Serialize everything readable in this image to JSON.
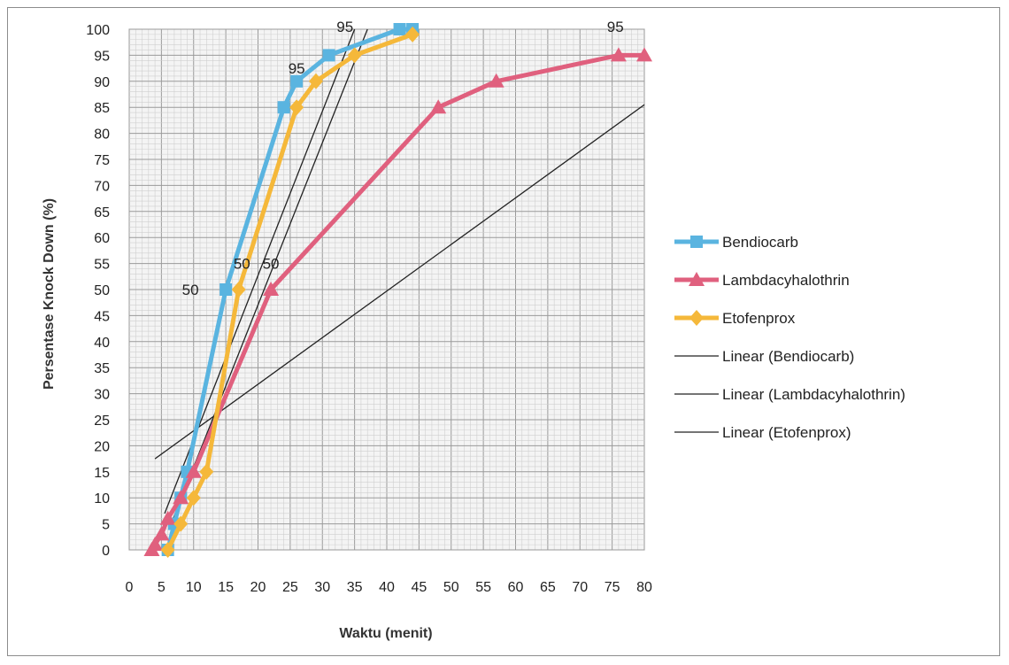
{
  "chart_data": {
    "type": "line",
    "xlabel": "Waktu (menit)",
    "ylabel": "Persentase Knock Down (%)",
    "xlim": [
      0,
      80
    ],
    "ylim": [
      0,
      100
    ],
    "x_ticks": [
      "0",
      "5",
      "10",
      "15",
      "20",
      "25",
      "30",
      "35",
      "40",
      "45",
      "50",
      "55",
      "60",
      "65",
      "70",
      "75",
      "80"
    ],
    "y_ticks": [
      "0",
      "5",
      "10",
      "15",
      "20",
      "25",
      "30",
      "35",
      "40",
      "45",
      "50",
      "55",
      "60",
      "65",
      "70",
      "75",
      "80",
      "85",
      "90",
      "95",
      "100"
    ],
    "grid": true,
    "legend_position": "right",
    "series": [
      {
        "name": "Bendiocarb",
        "color": "#5ab4e0",
        "marker": "square",
        "points": [
          [
            6,
            0
          ],
          [
            7,
            5
          ],
          [
            8,
            10
          ],
          [
            9,
            15
          ],
          [
            15,
            50
          ],
          [
            24,
            85
          ],
          [
            26,
            90
          ],
          [
            31,
            95
          ],
          [
            42,
            100
          ],
          [
            44,
            100
          ]
        ]
      },
      {
        "name": "Lambdacyhalothrin",
        "color": "#e0607e",
        "marker": "triangle",
        "points": [
          [
            3.5,
            0
          ],
          [
            4,
            1
          ],
          [
            5,
            3
          ],
          [
            6,
            6
          ],
          [
            8,
            10
          ],
          [
            10,
            15
          ],
          [
            22,
            50
          ],
          [
            48,
            85
          ],
          [
            57,
            90
          ],
          [
            76,
            95
          ],
          [
            80,
            95
          ]
        ]
      },
      {
        "name": "Etofenprox",
        "color": "#f5b83a",
        "marker": "diamond",
        "points": [
          [
            6,
            0
          ],
          [
            8,
            5
          ],
          [
            10,
            10
          ],
          [
            12,
            15
          ],
          [
            17,
            50
          ],
          [
            26,
            85
          ],
          [
            29,
            90
          ],
          [
            35,
            95
          ],
          [
            44,
            99
          ]
        ]
      }
    ],
    "trendlines": [
      {
        "name": "Linear (Bendiocarb)",
        "color": "#222222",
        "from": [
          5.5,
          7
        ],
        "to": [
          35,
          100
        ]
      },
      {
        "name": "Linear (Lambdacyhalothrin)",
        "color": "#222222",
        "from": [
          4,
          17.5
        ],
        "to": [
          80,
          85.5
        ]
      },
      {
        "name": "Linear (Etofenprox)",
        "color": "#222222",
        "from": [
          6.5,
          5
        ],
        "to": [
          37,
          100
        ]
      }
    ],
    "annotations": [
      {
        "text": "50",
        "x": 9.5,
        "y": 50
      },
      {
        "text": "50",
        "x": 17.5,
        "y": 55
      },
      {
        "text": "50",
        "x": 22,
        "y": 55
      },
      {
        "text": "95",
        "x": 26,
        "y": 92.5
      },
      {
        "text": "95",
        "x": 33.5,
        "y": 100.5
      },
      {
        "text": "95",
        "x": 75.5,
        "y": 100.5
      }
    ]
  }
}
